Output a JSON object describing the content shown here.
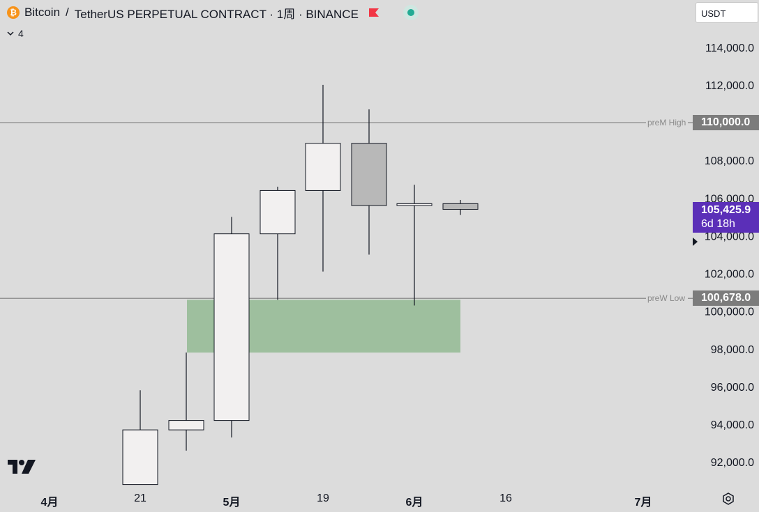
{
  "header": {
    "symbol": "Bitcoin",
    "separator": "/",
    "description": "TetherUS PERPETUAL CONTRACT · 1周 · BINANCE",
    "indicator_count": "4"
  },
  "currency_select": "USDT",
  "price_axis": [
    "114,000.0",
    "112,000.0",
    "108,000.0",
    "106,000.0",
    "104,000.0",
    "102,000.0",
    "100,000.0",
    "98,000.0",
    "96,000.0",
    "94,000.0",
    "92,000.0"
  ],
  "time_axis": [
    {
      "label": "4月",
      "bold": true
    },
    {
      "label": "21",
      "bold": false
    },
    {
      "label": "5月",
      "bold": true
    },
    {
      "label": "19",
      "bold": false
    },
    {
      "label": "6月",
      "bold": true
    },
    {
      "label": "16",
      "bold": false
    },
    {
      "label": "7月",
      "bold": true
    }
  ],
  "lines": {
    "prem_high": {
      "label": "preM High",
      "value": "110,000.0"
    },
    "prew_low": {
      "label": "preW Low",
      "value": "100,678.0"
    }
  },
  "current_price": {
    "value": "105,425.9",
    "countdown": "6d 18h"
  },
  "candles": [
    {
      "open": 93700,
      "high": 95800,
      "low": 90800,
      "close": 90800,
      "color": "up"
    },
    {
      "open": 93700,
      "high": 97800,
      "low": 92600,
      "close": 94200,
      "color": "up"
    },
    {
      "open": 94200,
      "high": 105000,
      "low": 93300,
      "close": 104100,
      "color": "up"
    },
    {
      "open": 104100,
      "high": 106600,
      "low": 100600,
      "close": 106400,
      "color": "up"
    },
    {
      "open": 106400,
      "high": 112000,
      "low": 102100,
      "close": 108900,
      "color": "up"
    },
    {
      "open": 108900,
      "high": 110700,
      "low": 103000,
      "close": 105600,
      "color": "down"
    },
    {
      "open": 105600,
      "high": 106700,
      "low": 100300,
      "close": 105700,
      "color": "up"
    },
    {
      "open": 105400,
      "high": 105900,
      "low": 105100,
      "close": 105700,
      "color": "down"
    }
  ],
  "zone": {
    "top": 100600,
    "bottom": 97800
  },
  "colors": {
    "up_body": "#f2f0f0",
    "down_body": "#b8b8b8",
    "zone": "#9ebf9e",
    "price_tag": "#5b2fb8",
    "line_tag": "#7c7c7c"
  }
}
